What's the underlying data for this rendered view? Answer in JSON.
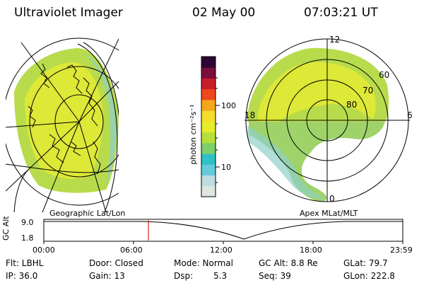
{
  "header": {
    "title": "Ultraviolet Imager",
    "date": "02 May 00",
    "time": "07:03:21 UT"
  },
  "geo_panel": {
    "label": "Geographic Lat/Lon"
  },
  "polar_panel": {
    "label": "Apex MLat/MLT",
    "mlt_labels": [
      "12",
      "18",
      "6",
      "0"
    ],
    "lat_labels": [
      "60",
      "70",
      "80"
    ]
  },
  "colorbar": {
    "unit_label": "photon cm⁻²s⁻¹",
    "tick_labels": [
      "100",
      "10"
    ],
    "colors": [
      "#dfe7e3",
      "#bfdde0",
      "#64cbd9",
      "#2fc0c8",
      "#7ed068",
      "#b6df3a",
      "#e6eb2a",
      "#f2dd2a",
      "#f4a71c",
      "#ef4718",
      "#c81e2a",
      "#7a0d3a",
      "#2d0535"
    ]
  },
  "timeline": {
    "axis_label": "GC Alt",
    "y_labels": [
      "9.0",
      "1.8"
    ],
    "x_labels": [
      "00:00",
      "06:00",
      "12:00",
      "18:00",
      "23:59"
    ],
    "marker_color": "#e02020"
  },
  "info": {
    "flt": "Flt: LBHL",
    "ip": "IP: 36.0",
    "door": "Door: Closed",
    "gain": "Gain: 13",
    "mode": "Mode: Normal",
    "dsp_label": "Dsp:",
    "dsp_value": "5.3",
    "gc_alt": "GC Alt: 8.8 Re",
    "seq": "Seq: 39",
    "glat": "GLat:  79.7",
    "glon": "GLon: 222.8"
  }
}
